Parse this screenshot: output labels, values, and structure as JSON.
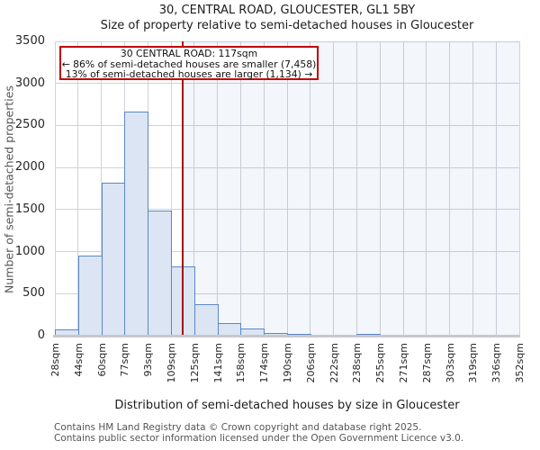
{
  "header": {
    "title": "30, CENTRAL ROAD, GLOUCESTER, GL1 5BY",
    "subtitle": "Size of property relative to semi-detached houses in Gloucester"
  },
  "chart_data": {
    "type": "bar",
    "categories": [
      "28sqm",
      "44sqm",
      "60sqm",
      "77sqm",
      "93sqm",
      "109sqm",
      "125sqm",
      "141sqm",
      "158sqm",
      "174sqm",
      "190sqm",
      "206sqm",
      "222sqm",
      "238sqm",
      "255sqm",
      "271sqm",
      "287sqm",
      "303sqm",
      "319sqm",
      "336sqm",
      "352sqm"
    ],
    "bin_edges_sqm": [
      28,
      44,
      60,
      77,
      93,
      109,
      125,
      141,
      158,
      174,
      190,
      206,
      222,
      238,
      255,
      271,
      287,
      303,
      319,
      336,
      352
    ],
    "values": [
      70,
      950,
      1820,
      2660,
      1490,
      820,
      370,
      155,
      90,
      30,
      18,
      12,
      14,
      22,
      7,
      7,
      0,
      0,
      0,
      0
    ],
    "xlabel": "Distribution of semi-detached houses by size in Gloucester",
    "ylabel": "Number of semi-detached properties",
    "ylim": [
      0,
      3500
    ],
    "ytick_step": 500,
    "grid": true,
    "legend": "none",
    "marker": {
      "value_sqm": 117,
      "xmin_sqm": 28,
      "xmax_sqm": 352
    }
  },
  "annotation": {
    "line1": "30 CENTRAL ROAD: 117sqm",
    "line2": "← 86% of semi-detached houses are smaller (7,458)",
    "line3": "13% of semi-detached houses are larger (1,134) →"
  },
  "footer": {
    "line1": "Contains HM Land Registry data © Crown copyright and database right 2025.",
    "line2": "Contains public sector information licensed under the Open Government Licence v3.0."
  },
  "colors": {
    "bar_fill": "#dbe5f3",
    "bar_border": "#5b88c7",
    "marker_line": "#a50f15",
    "annotation_border": "#c00000",
    "grid": "#cfd2d8",
    "shade_right": "rgba(120,150,215,0.09)",
    "axis_line": "#c6c8cd"
  }
}
